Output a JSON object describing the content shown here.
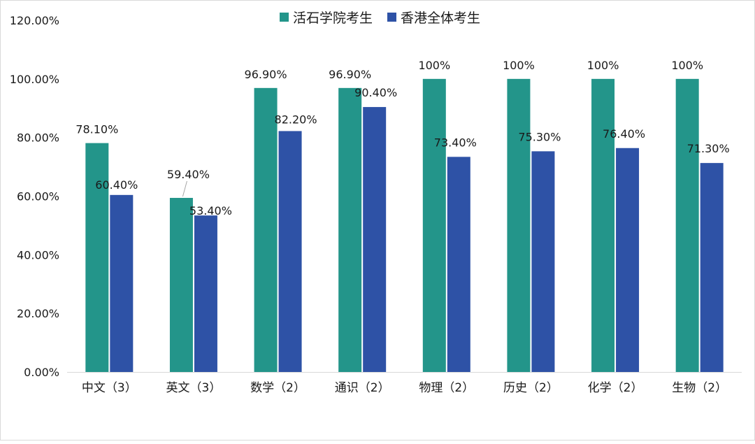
{
  "chart_data": {
    "type": "bar",
    "categories": [
      "中文（3）",
      "英文（3）",
      "数学（2）",
      "通识（2）",
      "物理（2）",
      "历史（2）",
      "化学（2）",
      "生物（2）"
    ],
    "series": [
      {
        "name": "活石学院考生",
        "color": "#23958a",
        "values": [
          78.1,
          59.4,
          96.9,
          96.9,
          100,
          100,
          100,
          100
        ],
        "labels": [
          "78.10%",
          "59.40%",
          "96.90%",
          "96.90%",
          "100%",
          "100%",
          "100%",
          "100%"
        ]
      },
      {
        "name": "香港全体考生",
        "color": "#2e52a6",
        "values": [
          60.4,
          53.4,
          82.2,
          90.4,
          73.4,
          75.3,
          76.4,
          71.3
        ],
        "labels": [
          "60.40%",
          "53.40%",
          "82.20%",
          "90.40%",
          "73.40%",
          "75.30%",
          "76.40%",
          "71.30%"
        ]
      }
    ],
    "yticks": [
      "0.00%",
      "20.00%",
      "40.00%",
      "60.00%",
      "80.00%",
      "100.00%",
      "120.00%"
    ],
    "ylim": [
      0,
      120
    ],
    "legend_position": "top-center",
    "grid": false,
    "title": "",
    "xlabel": "",
    "ylabel": ""
  }
}
